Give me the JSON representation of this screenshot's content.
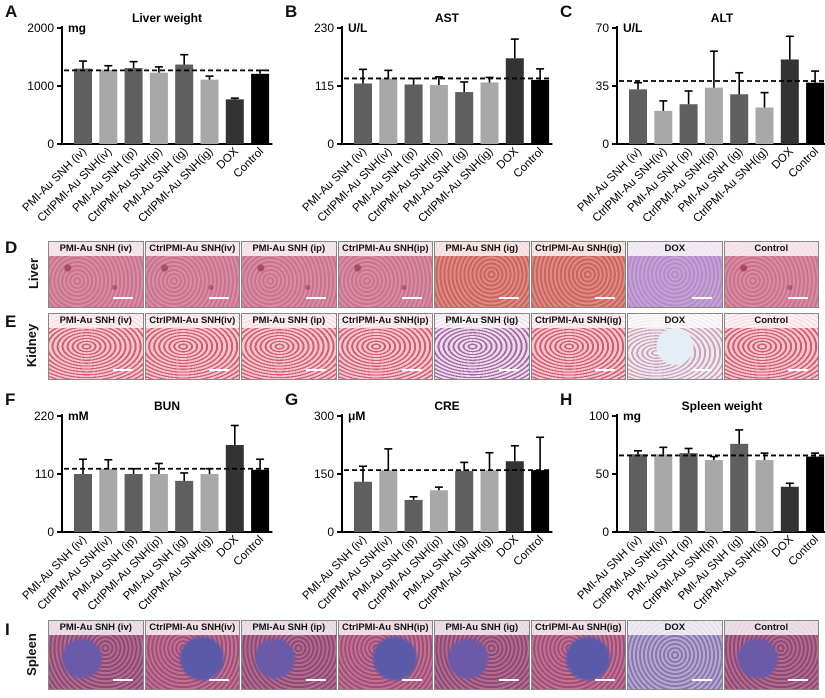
{
  "panel_letters": [
    "A",
    "B",
    "C",
    "D",
    "E",
    "F",
    "G",
    "H",
    "I"
  ],
  "groups": [
    "PMI-Au SNH (iv)",
    "CtrlPMI-Au SNH(iv)",
    "PMI-Au SNH (ip)",
    "CtrlPMI-Au SNH(ip)",
    "PMI-Au SNH (ig)",
    "CtrlPMI-Au SNH(ig)",
    "DOX",
    "Control"
  ],
  "colors": {
    "PMI-Au SNH (iv)": "#5f5f5f",
    "CtrlPMI-Au SNH(iv)": "#a8a8a8",
    "PMI-Au SNH (ip)": "#5f5f5f",
    "CtrlPMI-Au SNH(ip)": "#a8a8a8",
    "PMI-Au SNH (ig)": "#5f5f5f",
    "CtrlPMI-Au SNH(ig)": "#a8a8a8",
    "DOX": "#333333",
    "Control": "#000000"
  },
  "histology": {
    "liver_label": "Liver",
    "kidney_label": "Kidney",
    "spleen_label": "Spleen",
    "captions": [
      "PMI-Au SNH (iv)",
      "CtrlPMI-Au SNH(iv)",
      "PMI-Au SNH (ip)",
      "CtrlPMI-Au SNH(ip)",
      "PMI-Au SNH (ig)",
      "CtrlPMI-Au SNH(ig)",
      "DOX",
      "Control"
    ]
  },
  "chart_data": [
    {
      "id": "A",
      "type": "bar",
      "title": "Liver weight",
      "unit": "mg",
      "ylim": [
        0,
        2000
      ],
      "ticks": [
        0,
        1000,
        2000
      ],
      "reference": 1270,
      "values": [
        1300,
        1280,
        1310,
        1230,
        1370,
        1110,
        770,
        1210
      ],
      "errors": [
        130,
        70,
        110,
        100,
        170,
        60,
        20,
        60
      ]
    },
    {
      "id": "B",
      "type": "bar",
      "title": "AST",
      "unit": "U/L",
      "ylim": [
        0,
        230
      ],
      "ticks": [
        0,
        115,
        230
      ],
      "reference": 130,
      "values": [
        120,
        130,
        118,
        117,
        103,
        122,
        170,
        127
      ],
      "errors": [
        28,
        16,
        12,
        16,
        20,
        10,
        38,
        22
      ]
    },
    {
      "id": "C",
      "type": "bar",
      "title": "ALT",
      "unit": "U/L",
      "ylim": [
        0,
        70
      ],
      "ticks": [
        0,
        35,
        70
      ],
      "reference": 38,
      "values": [
        33,
        20,
        24,
        34,
        30,
        22,
        51,
        37
      ],
      "errors": [
        4,
        6,
        8,
        22,
        13,
        9,
        14,
        7
      ]
    },
    {
      "id": "F",
      "type": "bar",
      "title": "BUN",
      "unit": "mM",
      "ylim": [
        0,
        220
      ],
      "ticks": [
        0,
        110,
        220
      ],
      "reference": 120,
      "values": [
        110,
        120,
        110,
        110,
        97,
        110,
        165,
        118
      ],
      "errors": [
        28,
        17,
        10,
        20,
        15,
        10,
        37,
        20
      ]
    },
    {
      "id": "G",
      "type": "bar",
      "title": "CRE",
      "unit": "μM",
      "ylim": [
        0,
        300
      ],
      "ticks": [
        0,
        150,
        300
      ],
      "reference": 160,
      "values": [
        130,
        160,
        83,
        108,
        158,
        160,
        183,
        160
      ],
      "errors": [
        40,
        55,
        8,
        8,
        22,
        45,
        40,
        85
      ]
    },
    {
      "id": "H",
      "type": "bar",
      "title": "Spleen weight",
      "unit": "mg",
      "ylim": [
        0,
        100
      ],
      "ticks": [
        0,
        50,
        100
      ],
      "reference": 66,
      "values": [
        67,
        67,
        68,
        62,
        76,
        62,
        39,
        65
      ],
      "errors": [
        3,
        6,
        4,
        3,
        12,
        6,
        3,
        3
      ]
    }
  ]
}
